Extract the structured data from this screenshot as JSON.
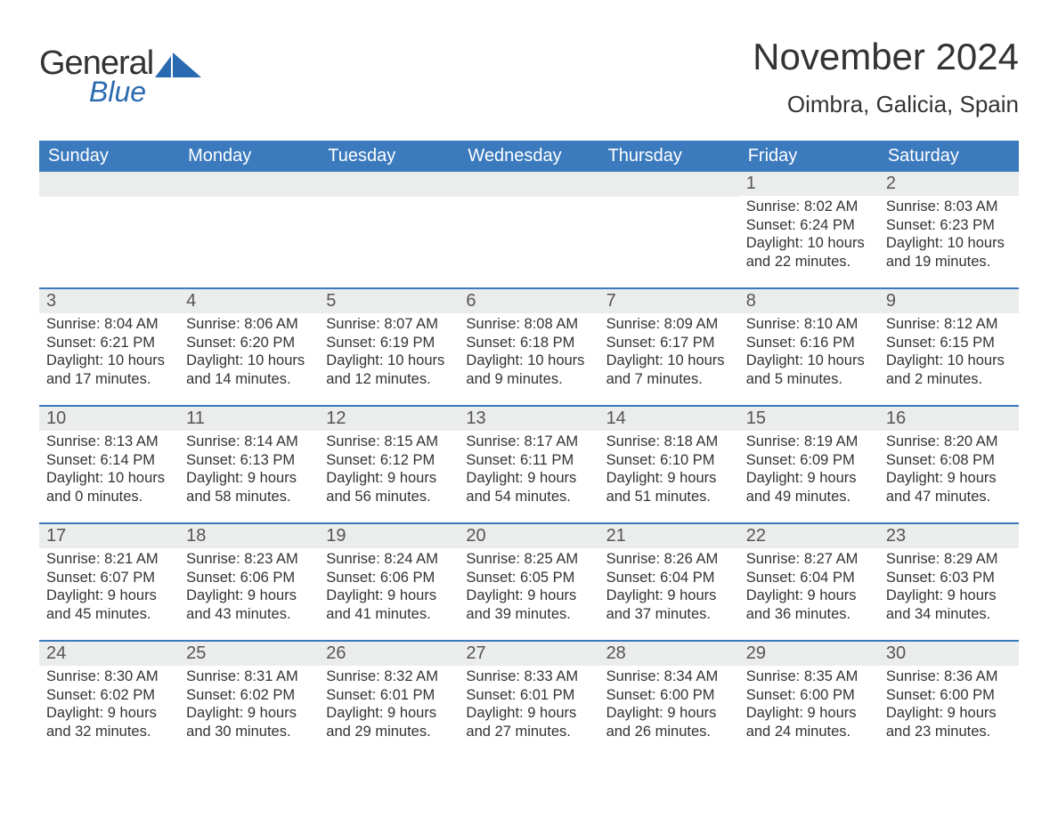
{
  "brand": {
    "name_part1": "General",
    "name_part2": "Blue",
    "part1_color": "#333333",
    "part2_color": "#2a6ab0",
    "flag_color": "#2a6ab0"
  },
  "title": {
    "month_year": "November 2024",
    "location": "Oimbra, Galicia, Spain"
  },
  "colors": {
    "header_bg": "#3a7abd",
    "header_text": "#ffffff",
    "daynum_bg": "#ebecec",
    "row_border": "#3a7abd",
    "body_text": "#333333",
    "page_bg": "#ffffff"
  },
  "typography": {
    "title_fontsize": 42,
    "location_fontsize": 26,
    "dow_fontsize": 20,
    "daynum_fontsize": 20,
    "body_fontsize": 16.5
  },
  "days_of_week": [
    "Sunday",
    "Monday",
    "Tuesday",
    "Wednesday",
    "Thursday",
    "Friday",
    "Saturday"
  ],
  "weeks": [
    [
      {
        "empty": true
      },
      {
        "empty": true
      },
      {
        "empty": true
      },
      {
        "empty": true
      },
      {
        "empty": true
      },
      {
        "day": "1",
        "sunrise": "Sunrise: 8:02 AM",
        "sunset": "Sunset: 6:24 PM",
        "daylight1": "Daylight: 10 hours",
        "daylight2": "and 22 minutes."
      },
      {
        "day": "2",
        "sunrise": "Sunrise: 8:03 AM",
        "sunset": "Sunset: 6:23 PM",
        "daylight1": "Daylight: 10 hours",
        "daylight2": "and 19 minutes."
      }
    ],
    [
      {
        "day": "3",
        "sunrise": "Sunrise: 8:04 AM",
        "sunset": "Sunset: 6:21 PM",
        "daylight1": "Daylight: 10 hours",
        "daylight2": "and 17 minutes."
      },
      {
        "day": "4",
        "sunrise": "Sunrise: 8:06 AM",
        "sunset": "Sunset: 6:20 PM",
        "daylight1": "Daylight: 10 hours",
        "daylight2": "and 14 minutes."
      },
      {
        "day": "5",
        "sunrise": "Sunrise: 8:07 AM",
        "sunset": "Sunset: 6:19 PM",
        "daylight1": "Daylight: 10 hours",
        "daylight2": "and 12 minutes."
      },
      {
        "day": "6",
        "sunrise": "Sunrise: 8:08 AM",
        "sunset": "Sunset: 6:18 PM",
        "daylight1": "Daylight: 10 hours",
        "daylight2": "and 9 minutes."
      },
      {
        "day": "7",
        "sunrise": "Sunrise: 8:09 AM",
        "sunset": "Sunset: 6:17 PM",
        "daylight1": "Daylight: 10 hours",
        "daylight2": "and 7 minutes."
      },
      {
        "day": "8",
        "sunrise": "Sunrise: 8:10 AM",
        "sunset": "Sunset: 6:16 PM",
        "daylight1": "Daylight: 10 hours",
        "daylight2": "and 5 minutes."
      },
      {
        "day": "9",
        "sunrise": "Sunrise: 8:12 AM",
        "sunset": "Sunset: 6:15 PM",
        "daylight1": "Daylight: 10 hours",
        "daylight2": "and 2 minutes."
      }
    ],
    [
      {
        "day": "10",
        "sunrise": "Sunrise: 8:13 AM",
        "sunset": "Sunset: 6:14 PM",
        "daylight1": "Daylight: 10 hours",
        "daylight2": "and 0 minutes."
      },
      {
        "day": "11",
        "sunrise": "Sunrise: 8:14 AM",
        "sunset": "Sunset: 6:13 PM",
        "daylight1": "Daylight: 9 hours",
        "daylight2": "and 58 minutes."
      },
      {
        "day": "12",
        "sunrise": "Sunrise: 8:15 AM",
        "sunset": "Sunset: 6:12 PM",
        "daylight1": "Daylight: 9 hours",
        "daylight2": "and 56 minutes."
      },
      {
        "day": "13",
        "sunrise": "Sunrise: 8:17 AM",
        "sunset": "Sunset: 6:11 PM",
        "daylight1": "Daylight: 9 hours",
        "daylight2": "and 54 minutes."
      },
      {
        "day": "14",
        "sunrise": "Sunrise: 8:18 AM",
        "sunset": "Sunset: 6:10 PM",
        "daylight1": "Daylight: 9 hours",
        "daylight2": "and 51 minutes."
      },
      {
        "day": "15",
        "sunrise": "Sunrise: 8:19 AM",
        "sunset": "Sunset: 6:09 PM",
        "daylight1": "Daylight: 9 hours",
        "daylight2": "and 49 minutes."
      },
      {
        "day": "16",
        "sunrise": "Sunrise: 8:20 AM",
        "sunset": "Sunset: 6:08 PM",
        "daylight1": "Daylight: 9 hours",
        "daylight2": "and 47 minutes."
      }
    ],
    [
      {
        "day": "17",
        "sunrise": "Sunrise: 8:21 AM",
        "sunset": "Sunset: 6:07 PM",
        "daylight1": "Daylight: 9 hours",
        "daylight2": "and 45 minutes."
      },
      {
        "day": "18",
        "sunrise": "Sunrise: 8:23 AM",
        "sunset": "Sunset: 6:06 PM",
        "daylight1": "Daylight: 9 hours",
        "daylight2": "and 43 minutes."
      },
      {
        "day": "19",
        "sunrise": "Sunrise: 8:24 AM",
        "sunset": "Sunset: 6:06 PM",
        "daylight1": "Daylight: 9 hours",
        "daylight2": "and 41 minutes."
      },
      {
        "day": "20",
        "sunrise": "Sunrise: 8:25 AM",
        "sunset": "Sunset: 6:05 PM",
        "daylight1": "Daylight: 9 hours",
        "daylight2": "and 39 minutes."
      },
      {
        "day": "21",
        "sunrise": "Sunrise: 8:26 AM",
        "sunset": "Sunset: 6:04 PM",
        "daylight1": "Daylight: 9 hours",
        "daylight2": "and 37 minutes."
      },
      {
        "day": "22",
        "sunrise": "Sunrise: 8:27 AM",
        "sunset": "Sunset: 6:04 PM",
        "daylight1": "Daylight: 9 hours",
        "daylight2": "and 36 minutes."
      },
      {
        "day": "23",
        "sunrise": "Sunrise: 8:29 AM",
        "sunset": "Sunset: 6:03 PM",
        "daylight1": "Daylight: 9 hours",
        "daylight2": "and 34 minutes."
      }
    ],
    [
      {
        "day": "24",
        "sunrise": "Sunrise: 8:30 AM",
        "sunset": "Sunset: 6:02 PM",
        "daylight1": "Daylight: 9 hours",
        "daylight2": "and 32 minutes."
      },
      {
        "day": "25",
        "sunrise": "Sunrise: 8:31 AM",
        "sunset": "Sunset: 6:02 PM",
        "daylight1": "Daylight: 9 hours",
        "daylight2": "and 30 minutes."
      },
      {
        "day": "26",
        "sunrise": "Sunrise: 8:32 AM",
        "sunset": "Sunset: 6:01 PM",
        "daylight1": "Daylight: 9 hours",
        "daylight2": "and 29 minutes."
      },
      {
        "day": "27",
        "sunrise": "Sunrise: 8:33 AM",
        "sunset": "Sunset: 6:01 PM",
        "daylight1": "Daylight: 9 hours",
        "daylight2": "and 27 minutes."
      },
      {
        "day": "28",
        "sunrise": "Sunrise: 8:34 AM",
        "sunset": "Sunset: 6:00 PM",
        "daylight1": "Daylight: 9 hours",
        "daylight2": "and 26 minutes."
      },
      {
        "day": "29",
        "sunrise": "Sunrise: 8:35 AM",
        "sunset": "Sunset: 6:00 PM",
        "daylight1": "Daylight: 9 hours",
        "daylight2": "and 24 minutes."
      },
      {
        "day": "30",
        "sunrise": "Sunrise: 8:36 AM",
        "sunset": "Sunset: 6:00 PM",
        "daylight1": "Daylight: 9 hours",
        "daylight2": "and 23 minutes."
      }
    ]
  ]
}
